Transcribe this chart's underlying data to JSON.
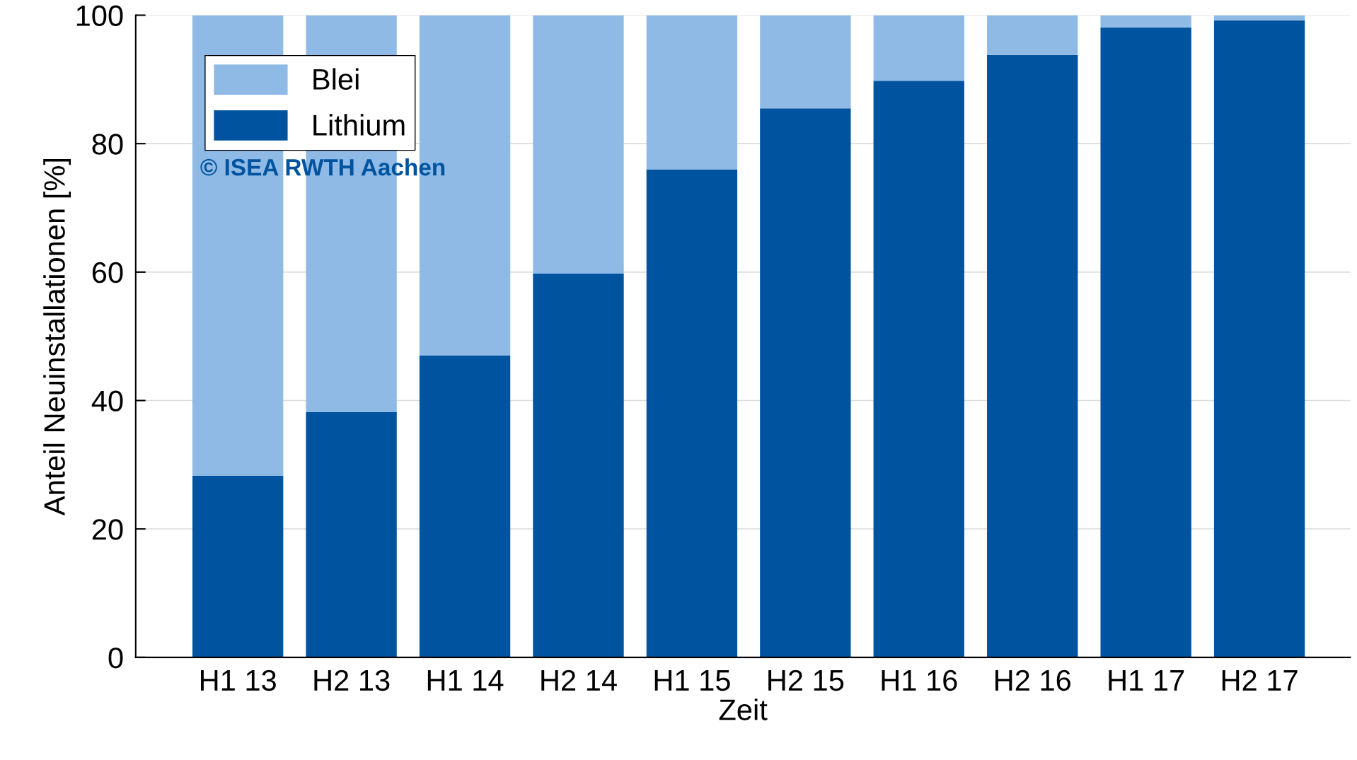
{
  "chart_data": {
    "type": "bar",
    "stacked": true,
    "xlabel": "Zeit",
    "ylabel": "Anteil Neuinstallationen [%]",
    "categories": [
      "H1 13",
      "H2 13",
      "H1 14",
      "H2 14",
      "H1 15",
      "H2 15",
      "H1 16",
      "H2 16",
      "H1 17",
      "H2 17"
    ],
    "series": [
      {
        "name": "Lithium",
        "color": "#00539f",
        "values": [
          28.3,
          38.2,
          47,
          59.8,
          76,
          85.5,
          89.8,
          93.8,
          98.1,
          99.2
        ]
      },
      {
        "name": "Blei",
        "color": "#8fbae6",
        "values": [
          71.7,
          61.8,
          53,
          40.2,
          24,
          14.5,
          10.2,
          6.2,
          1.9,
          0.8
        ]
      }
    ],
    "ylim": [
      0,
      100
    ],
    "yticks": [
      0,
      20,
      40,
      60,
      80,
      100
    ],
    "grid": "y",
    "legend": "top left",
    "annotations": [
      "© ISEA RWTH Aachen"
    ]
  }
}
